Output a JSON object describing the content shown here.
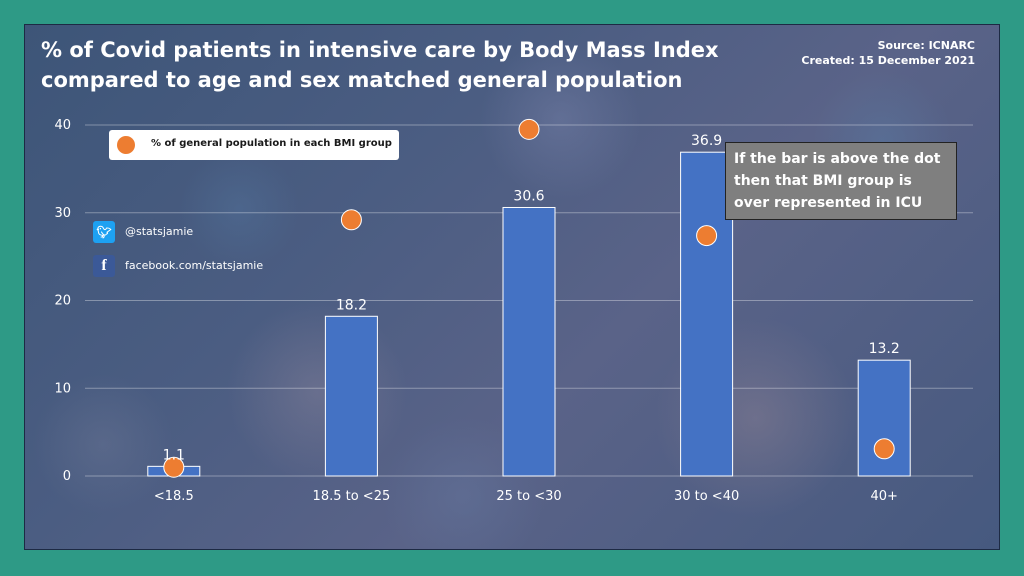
{
  "title": "% of Covid patients in intensive care by Body Mass Index compared to age and sex matched general population",
  "source": {
    "line1": "Source: ICNARC",
    "line2": "Created: 15 December 2021"
  },
  "legend": {
    "label": "% of general population in each BMI group",
    "color": "#ed7d31"
  },
  "social": {
    "twitter": "@statsjamie",
    "facebook": "facebook.com/statsjamie"
  },
  "note": "If the bar is above the dot then that BMI group is over represented in ICU",
  "chart_data": {
    "type": "bar",
    "categories": [
      "<18.5",
      "18.5 to <25",
      "25 to <30",
      "30 to <40",
      "40+"
    ],
    "series": [
      {
        "values": [
          1.1,
          18.2,
          30.6,
          36.9,
          13.2
        ],
        "color": "#4472c4",
        "type": "bar"
      },
      {
        "name": "% of general population in each BMI group",
        "values": [
          1.0,
          29.2,
          39.5,
          27.4,
          3.1
        ],
        "color": "#ed7d31",
        "type": "scatter"
      }
    ],
    "data_labels": [
      "1.1",
      "18.2",
      "30.6",
      "36.9",
      "13.2"
    ],
    "y_ticks": [
      0,
      10,
      20,
      30,
      40
    ],
    "ylim": [
      0,
      40
    ],
    "grid": true,
    "legend_position": "top-left"
  }
}
